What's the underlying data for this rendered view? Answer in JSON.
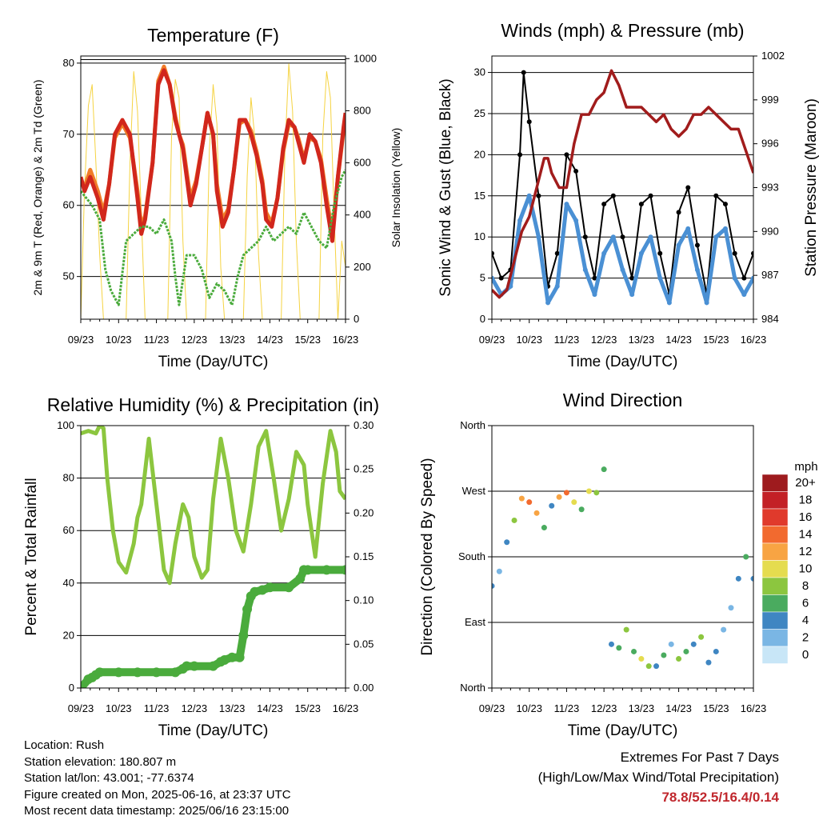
{
  "chart_data": [
    {
      "type": "line",
      "title": "Temperature (F)",
      "xlabel": "Time (Day/UTC)",
      "ylabel": "2m & 9m T (Red, Orange) & 2m Td (Green)",
      "ylabel_right": "Solar Insolation (Yellow)",
      "x_ticks": [
        "09/23",
        "10/23",
        "11/23",
        "12/23",
        "13/23",
        "14/23",
        "15/23",
        "16/23"
      ],
      "y_ticks": [
        50,
        60,
        70,
        80
      ],
      "y_right_ticks": [
        0,
        200,
        400,
        600,
        800,
        1000
      ],
      "ylim": [
        44,
        81
      ],
      "y_right_lim": [
        0,
        1010
      ],
      "grid": true,
      "series": [
        {
          "name": "2m T",
          "color": "#d1271c",
          "x": [
            0,
            0.1,
            0.25,
            0.45,
            0.6,
            0.75,
            0.9,
            1.1,
            1.3,
            1.5,
            1.6,
            1.7,
            1.9,
            2.05,
            2.2,
            2.35,
            2.5,
            2.6,
            2.7,
            2.9,
            3.05,
            3.2,
            3.35,
            3.5,
            3.6,
            3.75,
            3.9,
            4.05,
            4.2,
            4.35,
            4.5,
            4.65,
            4.8,
            4.9,
            5.05,
            5.2,
            5.35,
            5.5,
            5.65,
            5.75,
            5.9,
            6.05,
            6.2,
            6.35,
            6.5,
            6.65,
            6.8,
            6.95,
            7.0
          ],
          "y": [
            64,
            62,
            64,
            61,
            58,
            63,
            70,
            72,
            70,
            61,
            56,
            58,
            66,
            77,
            79,
            77,
            72,
            70,
            68,
            60,
            63,
            68,
            73,
            70,
            62,
            57,
            59,
            65,
            72,
            72,
            70,
            67,
            63,
            58,
            57,
            61,
            68,
            72,
            71,
            69,
            66,
            70,
            69,
            66,
            60,
            55,
            64,
            71,
            73
          ]
        },
        {
          "name": "9m T",
          "color": "#f07c28",
          "x": [
            0,
            0.1,
            0.25,
            0.45,
            0.6,
            0.75,
            0.9,
            1.1,
            1.3,
            1.5,
            1.6,
            1.7,
            1.9,
            2.05,
            2.2,
            2.35,
            2.5,
            2.6,
            2.7,
            2.9,
            3.05,
            3.2,
            3.35,
            3.5,
            3.6,
            3.75,
            3.9,
            4.05,
            4.2,
            4.35,
            4.5,
            4.65,
            4.8,
            4.9,
            5.05,
            5.2,
            5.35,
            5.5,
            5.65,
            5.75,
            5.9,
            6.05,
            6.2,
            6.35,
            6.5,
            6.65,
            6.8,
            6.95,
            7.0
          ],
          "y": [
            63.5,
            62.5,
            65,
            62,
            59,
            63,
            69.5,
            71.5,
            69.5,
            62,
            57,
            58.5,
            66,
            77.5,
            79.5,
            77,
            72.5,
            70,
            68.5,
            61,
            63.5,
            68,
            73,
            70,
            63,
            58,
            59.5,
            65,
            71.5,
            72,
            70.5,
            67.5,
            63.5,
            59,
            57.5,
            61,
            67.5,
            71.5,
            71,
            69.5,
            66.5,
            69.5,
            69,
            66.5,
            61,
            56,
            64,
            70.5,
            72.5
          ]
        },
        {
          "name": "2m Td",
          "color": "#4aab3c",
          "x": [
            0,
            0.15,
            0.3,
            0.5,
            0.65,
            0.8,
            1.0,
            1.2,
            1.4,
            1.6,
            1.8,
            2.0,
            2.2,
            2.4,
            2.5,
            2.6,
            2.8,
            3.0,
            3.2,
            3.4,
            3.6,
            3.8,
            4.0,
            4.15,
            4.3,
            4.5,
            4.7,
            4.9,
            5.1,
            5.3,
            5.5,
            5.7,
            5.9,
            6.1,
            6.3,
            6.5,
            6.7,
            6.9,
            7.0
          ],
          "y": [
            62,
            61,
            60,
            58,
            51,
            48,
            46,
            55,
            56,
            57,
            57,
            56,
            58,
            55,
            50,
            46,
            53,
            53,
            51,
            47,
            49,
            48,
            46,
            50,
            53,
            54,
            55,
            57,
            55,
            56,
            57,
            56,
            59,
            57,
            55,
            54,
            60,
            64,
            65
          ]
        },
        {
          "name": "Solar Insolation",
          "color": "#f5d342",
          "axis": "right",
          "x": [
            0,
            0.1,
            0.2,
            0.3,
            0.4,
            0.5,
            0.6,
            0.7,
            0.8,
            0.9,
            1.0,
            1.1,
            1.2,
            1.3,
            1.4,
            1.5,
            1.6,
            1.7,
            1.8,
            1.9,
            2.0,
            2.1,
            2.2,
            2.3,
            2.4,
            2.5,
            2.6,
            2.7,
            2.8,
            2.9,
            3.0,
            3.1,
            3.2,
            3.3,
            3.4,
            3.5,
            3.6,
            3.7,
            3.8,
            3.9,
            4.0,
            4.1,
            4.2,
            4.3,
            4.4,
            4.5,
            4.6,
            4.7,
            4.8,
            4.9,
            5.0,
            5.1,
            5.2,
            5.3,
            5.4,
            5.5,
            5.6,
            5.7,
            5.8,
            5.9,
            6.0,
            6.1,
            6.2,
            6.3,
            6.4,
            6.5,
            6.6,
            6.7,
            6.8,
            6.9,
            7.0
          ],
          "y": [
            0,
            500,
            820,
            900,
            600,
            250,
            0,
            0,
            0,
            0,
            0,
            0,
            0,
            600,
            950,
            800,
            400,
            0,
            0,
            0,
            0,
            0,
            0,
            0,
            700,
            920,
            850,
            300,
            0,
            0,
            0,
            0,
            0,
            0,
            650,
            900,
            750,
            200,
            0,
            0,
            0,
            0,
            0,
            0,
            550,
            850,
            700,
            250,
            0,
            0,
            0,
            0,
            0,
            0,
            650,
            980,
            800,
            300,
            0,
            0,
            0,
            0,
            0,
            0,
            700,
            950,
            850,
            400,
            0,
            300,
            200
          ]
        }
      ]
    },
    {
      "type": "scatter",
      "title": "Winds (mph) & Pressure (mb)",
      "xlabel": "Time (Day/UTC)",
      "ylabel": "Sonic Wind & Gust (Blue, Black)",
      "ylabel_right": "Station Pressure (Maroon)",
      "x_ticks": [
        "09/23",
        "10/23",
        "11/23",
        "12/23",
        "13/23",
        "14/23",
        "15/23",
        "16/23"
      ],
      "y_ticks": [
        0,
        5,
        10,
        15,
        20,
        25,
        30
      ],
      "y_right_ticks": [
        984,
        987,
        990,
        993,
        996,
        999,
        1002
      ],
      "ylim": [
        0,
        32
      ],
      "y_right_lim": [
        984,
        1002
      ],
      "grid": true,
      "series": [
        {
          "name": "Wind",
          "color": "#4a90d4",
          "x": [
            0,
            0.25,
            0.5,
            0.75,
            1.0,
            1.25,
            1.5,
            1.75,
            2.0,
            2.25,
            2.5,
            2.75,
            3.0,
            3.25,
            3.5,
            3.75,
            4.0,
            4.25,
            4.5,
            4.75,
            5.0,
            5.25,
            5.5,
            5.75,
            6.0,
            6.25,
            6.5,
            6.75,
            7.0
          ],
          "y": [
            5,
            3,
            4,
            12,
            15,
            10,
            2,
            4,
            14,
            12,
            6,
            3,
            8,
            10,
            6,
            3,
            8,
            10,
            5,
            2,
            9,
            11,
            6,
            2,
            10,
            11,
            5,
            3,
            5
          ]
        },
        {
          "name": "Gust",
          "color": "#000000",
          "x": [
            0,
            0.25,
            0.5,
            0.75,
            0.85,
            1.0,
            1.25,
            1.5,
            1.75,
            2.0,
            2.25,
            2.5,
            2.75,
            3.0,
            3.25,
            3.5,
            3.75,
            4.0,
            4.25,
            4.5,
            4.75,
            5.0,
            5.25,
            5.5,
            5.75,
            6.0,
            6.25,
            6.5,
            6.75,
            7.0
          ],
          "y": [
            8,
            5,
            6,
            20,
            30,
            24,
            15,
            4,
            8,
            20,
            18,
            10,
            5,
            14,
            15,
            10,
            5,
            14,
            15,
            8,
            3,
            13,
            16,
            9,
            3,
            15,
            14,
            8,
            5,
            8
          ]
        },
        {
          "name": "Pressure",
          "color": "#a11c1c",
          "axis": "right",
          "x": [
            0,
            0.2,
            0.4,
            0.6,
            0.8,
            1.0,
            1.2,
            1.4,
            1.5,
            1.6,
            1.8,
            2.0,
            2.2,
            2.4,
            2.6,
            2.8,
            3.0,
            3.2,
            3.4,
            3.6,
            3.8,
            4.0,
            4.2,
            4.4,
            4.6,
            4.8,
            5.0,
            5.2,
            5.4,
            5.6,
            5.8,
            6.0,
            6.2,
            6.4,
            6.6,
            6.8,
            7.0
          ],
          "y": [
            986,
            985.5,
            986,
            988,
            990,
            991,
            993,
            995,
            995,
            994,
            993,
            993,
            996,
            998,
            998,
            999,
            999.5,
            1001,
            1000,
            998.5,
            998.5,
            998.5,
            998,
            997.5,
            998,
            997,
            996.5,
            997,
            998,
            998,
            998.5,
            998,
            997.5,
            997,
            997,
            995.5,
            994
          ]
        }
      ]
    },
    {
      "type": "line",
      "title": "Relative Humidity (%) & Precipitation (in)",
      "xlabel": "Time (Day/UTC)",
      "ylabel": "Percent & Total Rainfall",
      "x_ticks": [
        "09/23",
        "10/23",
        "11/23",
        "12/23",
        "13/23",
        "14/23",
        "15/23",
        "16/23"
      ],
      "y_ticks": [
        0,
        20,
        40,
        60,
        80,
        100
      ],
      "y_right_ticks": [
        "0.00",
        "0.05",
        "0.10",
        "0.15",
        "0.20",
        "0.25",
        "0.30"
      ],
      "ylim": [
        0,
        100
      ],
      "y_right_lim": [
        0,
        0.3
      ],
      "grid": true,
      "series": [
        {
          "name": "Relative Humidity",
          "color": "#8cc63f",
          "x": [
            0,
            0.2,
            0.4,
            0.5,
            0.6,
            0.7,
            0.85,
            1.0,
            1.2,
            1.4,
            1.5,
            1.6,
            1.8,
            2.0,
            2.2,
            2.35,
            2.5,
            2.7,
            2.85,
            3.0,
            3.2,
            3.35,
            3.5,
            3.7,
            3.9,
            4.1,
            4.3,
            4.5,
            4.7,
            4.9,
            5.1,
            5.3,
            5.5,
            5.7,
            5.9,
            6.0,
            6.2,
            6.4,
            6.6,
            6.75,
            6.85,
            7.0
          ],
          "y": [
            97,
            98,
            97,
            100,
            99,
            80,
            60,
            48,
            44,
            55,
            65,
            70,
            95,
            70,
            45,
            40,
            55,
            70,
            65,
            50,
            42,
            45,
            72,
            95,
            80,
            60,
            52,
            70,
            92,
            98,
            80,
            60,
            72,
            90,
            85,
            70,
            50,
            78,
            98,
            90,
            75,
            72
          ]
        },
        {
          "name": "Total Rainfall",
          "color": "#4aab3c",
          "axis": "right",
          "x": [
            0,
            0.2,
            0.3,
            0.4,
            0.5,
            1.0,
            1.5,
            2.0,
            2.5,
            2.7,
            2.8,
            3.0,
            3.5,
            3.7,
            3.8,
            4.0,
            4.2,
            4.3,
            4.4,
            4.5,
            4.6,
            4.8,
            5.0,
            5.5,
            5.8,
            5.9,
            6.0,
            6.5,
            7.0
          ],
          "y": [
            0,
            0.01,
            0.012,
            0.015,
            0.018,
            0.018,
            0.018,
            0.018,
            0.018,
            0.022,
            0.025,
            0.025,
            0.025,
            0.03,
            0.032,
            0.035,
            0.035,
            0.06,
            0.09,
            0.105,
            0.11,
            0.112,
            0.115,
            0.115,
            0.125,
            0.135,
            0.135,
            0.135,
            0.135
          ]
        }
      ]
    },
    {
      "type": "scatter",
      "title": "Wind Direction",
      "xlabel": "Time (Day/UTC)",
      "ylabel": "Direction (Colored By Speed)",
      "x_ticks": [
        "09/23",
        "10/23",
        "11/23",
        "12/23",
        "13/23",
        "14/23",
        "15/23",
        "16/23"
      ],
      "y_tick_labels": [
        "North",
        "East",
        "South",
        "West",
        "North"
      ],
      "y_ticks": [
        0,
        90,
        180,
        270,
        360
      ],
      "ylim": [
        0,
        360
      ],
      "grid": true,
      "colorbar_title": "mph",
      "colorbar_labels": [
        "20+",
        "18",
        "16",
        "14",
        "12",
        "10",
        "8",
        "6",
        "4",
        "2",
        "0"
      ],
      "colorbar_colors": [
        "#9e1b1e",
        "#c32026",
        "#e03a2c",
        "#f26a2f",
        "#f8a443",
        "#e5dc4f",
        "#8cc63f",
        "#4aab5f",
        "#3f86c2",
        "#7ab6e4",
        "#c8e6f7"
      ],
      "series": [
        {
          "name": "Direction",
          "x": [
            0,
            0.2,
            0.4,
            0.6,
            0.8,
            1.0,
            1.2,
            1.4,
            1.6,
            1.8,
            2.0,
            2.2,
            2.4,
            2.6,
            2.8,
            3.0,
            3.2,
            3.4,
            3.6,
            3.8,
            4.0,
            4.2,
            4.4,
            4.6,
            4.8,
            5.0,
            5.2,
            5.4,
            5.6,
            5.8,
            6.0,
            6.2,
            6.4,
            6.6,
            6.8,
            7.0
          ],
          "y": [
            140,
            160,
            200,
            230,
            260,
            255,
            240,
            220,
            250,
            262,
            268,
            255,
            245,
            270,
            268,
            300,
            60,
            55,
            80,
            50,
            40,
            30,
            30,
            45,
            60,
            40,
            50,
            60,
            70,
            35,
            50,
            80,
            110,
            150,
            180,
            150
          ],
          "speed": [
            4,
            3,
            5,
            8,
            12,
            14,
            12,
            6,
            4,
            13,
            14,
            10,
            6,
            10,
            8,
            6,
            5,
            7,
            8,
            6,
            10,
            9,
            4,
            7,
            3,
            8,
            6,
            4,
            8,
            5,
            4,
            2,
            3,
            5,
            6,
            4
          ]
        }
      ]
    }
  ],
  "footer": {
    "location": "Location: Rush",
    "elevation": "Station elevation: 180.807 m",
    "latlon": "Station lat/lon: 43.001; -77.6374",
    "created": "Figure created on Mon, 2025-06-16, at 23:37 UTC",
    "recent": "Most recent data timestamp: 2025/06/16 23:15:00",
    "extremes_title": "Extremes For Past 7 Days",
    "extremes_sub": "(High/Low/Max Wind/Total Precipitation)",
    "extremes_values": "78.8/52.5/16.4/0.14"
  }
}
